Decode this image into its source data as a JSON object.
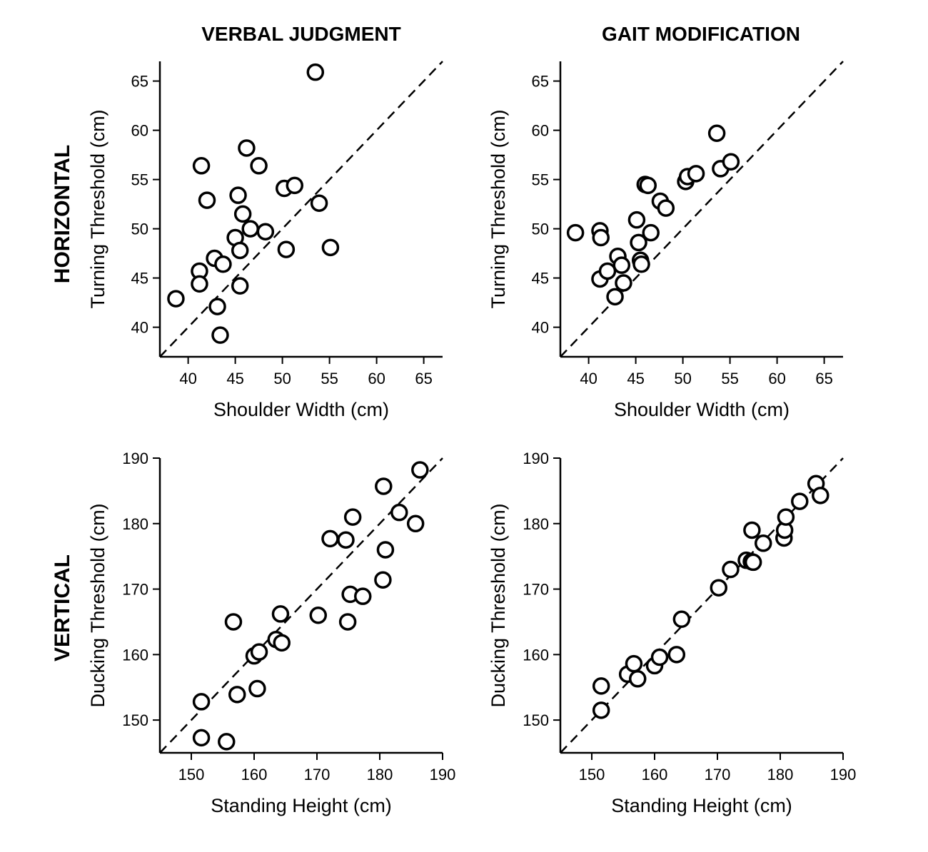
{
  "column_titles": [
    "VERBAL JUDGMENT",
    "GAIT MODIFICATION"
  ],
  "row_labels": [
    "HORIZONTAL",
    "VERTICAL"
  ],
  "chart_data": [
    {
      "type": "scatter",
      "row": "HORIZONTAL",
      "column": "VERBAL JUDGMENT",
      "xlabel": "Shoulder Width (cm)",
      "ylabel": "Turning Threshold (cm)",
      "xlim": [
        37,
        67
      ],
      "ylim": [
        37,
        67
      ],
      "xticks": [
        40,
        45,
        50,
        55,
        60,
        65
      ],
      "yticks": [
        40,
        45,
        50,
        55,
        60,
        65
      ],
      "reference_line": "y = x (dashed)",
      "points": [
        {
          "x": 38.7,
          "y": 42.9
        },
        {
          "x": 41.2,
          "y": 45.7
        },
        {
          "x": 41.2,
          "y": 44.4
        },
        {
          "x": 41.4,
          "y": 56.4
        },
        {
          "x": 42.0,
          "y": 52.9
        },
        {
          "x": 42.8,
          "y": 47.0
        },
        {
          "x": 43.1,
          "y": 42.1
        },
        {
          "x": 43.4,
          "y": 39.2
        },
        {
          "x": 43.7,
          "y": 46.4
        },
        {
          "x": 45.0,
          "y": 49.1
        },
        {
          "x": 45.3,
          "y": 53.4
        },
        {
          "x": 45.5,
          "y": 47.8
        },
        {
          "x": 45.5,
          "y": 44.2
        },
        {
          "x": 45.8,
          "y": 51.5
        },
        {
          "x": 46.2,
          "y": 58.2
        },
        {
          "x": 46.6,
          "y": 50.0
        },
        {
          "x": 47.5,
          "y": 56.4
        },
        {
          "x": 48.2,
          "y": 49.7
        },
        {
          "x": 50.2,
          "y": 54.1
        },
        {
          "x": 50.4,
          "y": 47.9
        },
        {
          "x": 51.3,
          "y": 54.4
        },
        {
          "x": 53.5,
          "y": 65.9
        },
        {
          "x": 53.9,
          "y": 52.6
        },
        {
          "x": 55.1,
          "y": 48.1
        }
      ]
    },
    {
      "type": "scatter",
      "row": "HORIZONTAL",
      "column": "GAIT MODIFICATION",
      "xlabel": "Shoulder Width (cm)",
      "ylabel": "Turning Threshold (cm)",
      "xlim": [
        37,
        67
      ],
      "ylim": [
        37,
        67
      ],
      "xticks": [
        40,
        45,
        50,
        55,
        60,
        65
      ],
      "yticks": [
        40,
        45,
        50,
        55,
        60,
        65
      ],
      "reference_line": "y = x (dashed)",
      "points": [
        {
          "x": 38.6,
          "y": 49.6
        },
        {
          "x": 41.2,
          "y": 49.8
        },
        {
          "x": 41.3,
          "y": 49.1
        },
        {
          "x": 41.2,
          "y": 44.9
        },
        {
          "x": 42.0,
          "y": 45.7
        },
        {
          "x": 42.8,
          "y": 43.1
        },
        {
          "x": 43.1,
          "y": 47.2
        },
        {
          "x": 43.5,
          "y": 46.3
        },
        {
          "x": 43.7,
          "y": 44.5
        },
        {
          "x": 45.1,
          "y": 50.9
        },
        {
          "x": 45.3,
          "y": 48.6
        },
        {
          "x": 45.5,
          "y": 46.8
        },
        {
          "x": 45.6,
          "y": 46.4
        },
        {
          "x": 46.0,
          "y": 54.5
        },
        {
          "x": 46.3,
          "y": 54.4
        },
        {
          "x": 46.6,
          "y": 49.6
        },
        {
          "x": 47.6,
          "y": 52.8
        },
        {
          "x": 48.2,
          "y": 52.1
        },
        {
          "x": 50.3,
          "y": 54.8
        },
        {
          "x": 50.5,
          "y": 55.3
        },
        {
          "x": 51.4,
          "y": 55.6
        },
        {
          "x": 53.6,
          "y": 59.7
        },
        {
          "x": 54.0,
          "y": 56.1
        },
        {
          "x": 55.1,
          "y": 56.8
        }
      ]
    },
    {
      "type": "scatter",
      "row": "VERTICAL",
      "column": "VERBAL JUDGMENT",
      "xlabel": "Standing Height (cm)",
      "ylabel": "Ducking Threshold (cm)",
      "xlim": [
        145,
        190
      ],
      "ylim": [
        145,
        190
      ],
      "xticks": [
        150,
        160,
        170,
        180,
        190
      ],
      "yticks": [
        150,
        160,
        170,
        180,
        190
      ],
      "reference_line": "y = x (dashed)",
      "points": [
        {
          "x": 151.6,
          "y": 152.8
        },
        {
          "x": 151.6,
          "y": 147.3
        },
        {
          "x": 155.6,
          "y": 146.7
        },
        {
          "x": 156.7,
          "y": 165.0
        },
        {
          "x": 157.3,
          "y": 153.9
        },
        {
          "x": 160.0,
          "y": 159.8
        },
        {
          "x": 160.5,
          "y": 154.8
        },
        {
          "x": 160.8,
          "y": 160.4
        },
        {
          "x": 163.5,
          "y": 162.3
        },
        {
          "x": 164.2,
          "y": 166.2
        },
        {
          "x": 164.4,
          "y": 161.8
        },
        {
          "x": 170.2,
          "y": 166.0
        },
        {
          "x": 172.1,
          "y": 177.7
        },
        {
          "x": 174.6,
          "y": 177.5
        },
        {
          "x": 174.9,
          "y": 165.0
        },
        {
          "x": 175.3,
          "y": 169.2
        },
        {
          "x": 175.7,
          "y": 181.0
        },
        {
          "x": 177.3,
          "y": 168.9
        },
        {
          "x": 180.5,
          "y": 171.4
        },
        {
          "x": 180.6,
          "y": 185.7
        },
        {
          "x": 180.9,
          "y": 176.0
        },
        {
          "x": 183.1,
          "y": 181.7
        },
        {
          "x": 185.7,
          "y": 180.0
        },
        {
          "x": 186.4,
          "y": 188.2
        }
      ]
    },
    {
      "type": "scatter",
      "row": "VERTICAL",
      "column": "GAIT MODIFICATION",
      "xlabel": "Standing Height (cm)",
      "ylabel": "Ducking Threshold (cm)",
      "xlim": [
        145,
        190
      ],
      "ylim": [
        145,
        190
      ],
      "xticks": [
        150,
        160,
        170,
        180,
        190
      ],
      "yticks": [
        150,
        160,
        170,
        180,
        190
      ],
      "reference_line": "y = x (dashed)",
      "points": [
        {
          "x": 151.5,
          "y": 155.2
        },
        {
          "x": 151.5,
          "y": 151.5
        },
        {
          "x": 155.7,
          "y": 157.0
        },
        {
          "x": 156.7,
          "y": 158.6
        },
        {
          "x": 157.3,
          "y": 156.3
        },
        {
          "x": 160.0,
          "y": 158.3
        },
        {
          "x": 160.8,
          "y": 159.6
        },
        {
          "x": 163.5,
          "y": 160.0
        },
        {
          "x": 164.3,
          "y": 165.4
        },
        {
          "x": 170.2,
          "y": 170.2
        },
        {
          "x": 172.1,
          "y": 173.0
        },
        {
          "x": 174.6,
          "y": 174.4
        },
        {
          "x": 175.4,
          "y": 174.2
        },
        {
          "x": 175.7,
          "y": 174.1
        },
        {
          "x": 175.5,
          "y": 179.0
        },
        {
          "x": 177.3,
          "y": 177.0
        },
        {
          "x": 180.6,
          "y": 177.8
        },
        {
          "x": 180.7,
          "y": 179.0
        },
        {
          "x": 180.9,
          "y": 181.0
        },
        {
          "x": 183.1,
          "y": 183.4
        },
        {
          "x": 185.7,
          "y": 186.1
        },
        {
          "x": 186.4,
          "y": 184.3
        }
      ]
    }
  ]
}
